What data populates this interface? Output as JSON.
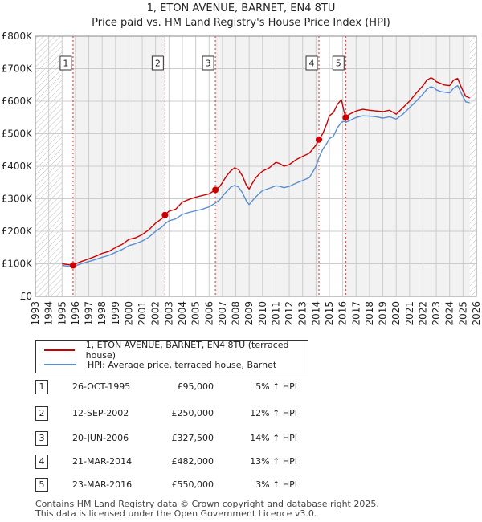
{
  "title": "1, ETON AVENUE, BARNET, EN4 8TU",
  "subtitle": "Price paid vs. HM Land Registry's House Price Index (HPI)",
  "colors": {
    "property": "#cc0000",
    "hpi": "#5b8fd1",
    "grid": "#cccccc",
    "shade": "#e8e8e8",
    "hatch": "#bdbdbd"
  },
  "chart_data": {
    "type": "line",
    "title": "1, ETON AVENUE, BARNET, EN4 8TU",
    "subtitle": "Price paid vs. HM Land Registry's House Price Index (HPI)",
    "xlim": [
      1993,
      2026
    ],
    "ylim": [
      0,
      800000
    ],
    "x_ticks": [
      1993,
      1994,
      1995,
      1996,
      1997,
      1998,
      1999,
      2000,
      2001,
      2002,
      2003,
      2004,
      2005,
      2006,
      2007,
      2008,
      2009,
      2010,
      2011,
      2012,
      2013,
      2014,
      2015,
      2016,
      2017,
      2018,
      2019,
      2020,
      2021,
      2022,
      2023,
      2024,
      2025,
      2026
    ],
    "y_ticks": [
      0,
      100000,
      200000,
      300000,
      400000,
      500000,
      600000,
      700000,
      800000
    ],
    "y_tick_labels": [
      "£0",
      "£100K",
      "£200K",
      "£300K",
      "£400K",
      "£500K",
      "£600K",
      "£700K",
      "£800K"
    ],
    "data_range": [
      1995.0,
      2025.5
    ],
    "series": [
      {
        "name": "1, ETON AVENUE, BARNET, EN4 8TU (terraced house)",
        "color": "#cc0000",
        "x": [
          1995.0,
          1995.5,
          1995.82,
          1996.0,
          1996.5,
          1997.0,
          1997.5,
          1998.0,
          1998.5,
          1999.0,
          1999.5,
          2000.0,
          2000.5,
          2001.0,
          2001.5,
          2002.0,
          2002.5,
          2002.7,
          2003.0,
          2003.5,
          2004.0,
          2004.5,
          2005.0,
          2005.5,
          2006.0,
          2006.47,
          2006.8,
          2007.0,
          2007.3,
          2007.6,
          2007.9,
          2008.2,
          2008.5,
          2008.8,
          2009.0,
          2009.2,
          2009.5,
          2009.8,
          2010.0,
          2010.5,
          2011.0,
          2011.3,
          2011.6,
          2012.0,
          2012.5,
          2013.0,
          2013.5,
          2013.8,
          2014.0,
          2014.22,
          2014.5,
          2014.8,
          2015.0,
          2015.3,
          2015.6,
          2015.9,
          2016.1,
          2016.22,
          2016.5,
          2017.0,
          2017.5,
          2018.0,
          2018.5,
          2019.0,
          2019.5,
          2020.0,
          2020.5,
          2021.0,
          2021.5,
          2022.0,
          2022.3,
          2022.6,
          2022.8,
          2023.0,
          2023.3,
          2023.6,
          2024.0,
          2024.3,
          2024.6,
          2024.9,
          2025.2,
          2025.5
        ],
        "y": [
          100000,
          97000,
          95000,
          100000,
          108000,
          115000,
          123000,
          132000,
          138000,
          150000,
          160000,
          175000,
          180000,
          190000,
          205000,
          225000,
          240000,
          250000,
          262000,
          268000,
          290000,
          298000,
          305000,
          310000,
          315000,
          327500,
          338000,
          350000,
          370000,
          385000,
          395000,
          390000,
          370000,
          340000,
          330000,
          345000,
          365000,
          378000,
          385000,
          395000,
          412000,
          408000,
          400000,
          405000,
          420000,
          430000,
          440000,
          455000,
          465000,
          482000,
          500000,
          530000,
          555000,
          565000,
          590000,
          605000,
          568000,
          550000,
          560000,
          570000,
          575000,
          572000,
          570000,
          568000,
          572000,
          560000,
          580000,
          600000,
          625000,
          648000,
          665000,
          672000,
          668000,
          660000,
          655000,
          650000,
          648000,
          665000,
          670000,
          640000,
          615000,
          610000
        ]
      },
      {
        "name": "HPI: Average price, terraced house, Barnet",
        "color": "#5b8fd1",
        "x": [
          1995.0,
          1995.5,
          1995.82,
          1996.0,
          1996.5,
          1997.0,
          1997.5,
          1998.0,
          1998.5,
          1999.0,
          1999.5,
          2000.0,
          2000.5,
          2001.0,
          2001.5,
          2002.0,
          2002.5,
          2002.7,
          2003.0,
          2003.5,
          2004.0,
          2004.5,
          2005.0,
          2005.5,
          2006.0,
          2006.47,
          2006.8,
          2007.0,
          2007.3,
          2007.6,
          2007.9,
          2008.2,
          2008.5,
          2008.8,
          2009.0,
          2009.2,
          2009.5,
          2009.8,
          2010.0,
          2010.5,
          2011.0,
          2011.3,
          2011.6,
          2012.0,
          2012.5,
          2013.0,
          2013.5,
          2013.8,
          2014.0,
          2014.22,
          2014.5,
          2014.8,
          2015.0,
          2015.3,
          2015.6,
          2015.9,
          2016.1,
          2016.22,
          2016.5,
          2017.0,
          2017.5,
          2018.0,
          2018.5,
          2019.0,
          2019.5,
          2020.0,
          2020.5,
          2021.0,
          2021.5,
          2022.0,
          2022.3,
          2022.6,
          2022.8,
          2023.0,
          2023.3,
          2023.6,
          2024.0,
          2024.3,
          2024.6,
          2024.9,
          2025.2,
          2025.5
        ],
        "y": [
          95000,
          92000,
          90500,
          94000,
          101000,
          107000,
          113000,
          120000,
          126000,
          135000,
          144000,
          156000,
          162000,
          170000,
          182000,
          200000,
          214000,
          223000,
          232000,
          238000,
          252000,
          258000,
          263000,
          268000,
          275000,
          287000,
          297000,
          308000,
          322000,
          335000,
          341000,
          336000,
          318000,
          292000,
          282000,
          292000,
          306000,
          318000,
          325000,
          332000,
          340000,
          338000,
          334000,
          338000,
          348000,
          356000,
          365000,
          385000,
          400000,
          426000,
          452000,
          470000,
          485000,
          492000,
          518000,
          535000,
          538000,
          535000,
          540000,
          550000,
          555000,
          554000,
          552000,
          548000,
          552000,
          545000,
          560000,
          580000,
          600000,
          622000,
          637000,
          645000,
          642000,
          635000,
          630000,
          628000,
          626000,
          640000,
          648000,
          622000,
          598000,
          595000
        ]
      }
    ],
    "sales": [
      {
        "id": "1",
        "date": "26-OCT-1995",
        "x": 1995.82,
        "price": 95000
      },
      {
        "id": "2",
        "date": "12-SEP-2002",
        "x": 2002.7,
        "price": 250000
      },
      {
        "id": "3",
        "date": "20-JUN-2006",
        "x": 2006.47,
        "price": 327500
      },
      {
        "id": "4",
        "date": "21-MAR-2014",
        "x": 2014.22,
        "price": 482000
      },
      {
        "id": "5",
        "date": "23-MAR-2016",
        "x": 2016.22,
        "price": 550000
      }
    ]
  },
  "legend": {
    "property_label": "1, ETON AVENUE, BARNET, EN4 8TU (terraced house)",
    "hpi_label": "HPI: Average price, terraced house, Barnet"
  },
  "sales_table": [
    {
      "num": "1",
      "date": "26-OCT-1995",
      "price": "£95,000",
      "hpi": "5% ↑ HPI"
    },
    {
      "num": "2",
      "date": "12-SEP-2002",
      "price": "£250,000",
      "hpi": "12% ↑ HPI"
    },
    {
      "num": "3",
      "date": "20-JUN-2006",
      "price": "£327,500",
      "hpi": "14% ↑ HPI"
    },
    {
      "num": "4",
      "date": "21-MAR-2014",
      "price": "£482,000",
      "hpi": "13% ↑ HPI"
    },
    {
      "num": "5",
      "date": "23-MAR-2016",
      "price": "£550,000",
      "hpi": "3% ↑ HPI"
    }
  ],
  "footer": {
    "line1": "Contains HM Land Registry data © Crown copyright and database right 2025.",
    "line2": "This data is licensed under the Open Government Licence v3.0."
  }
}
